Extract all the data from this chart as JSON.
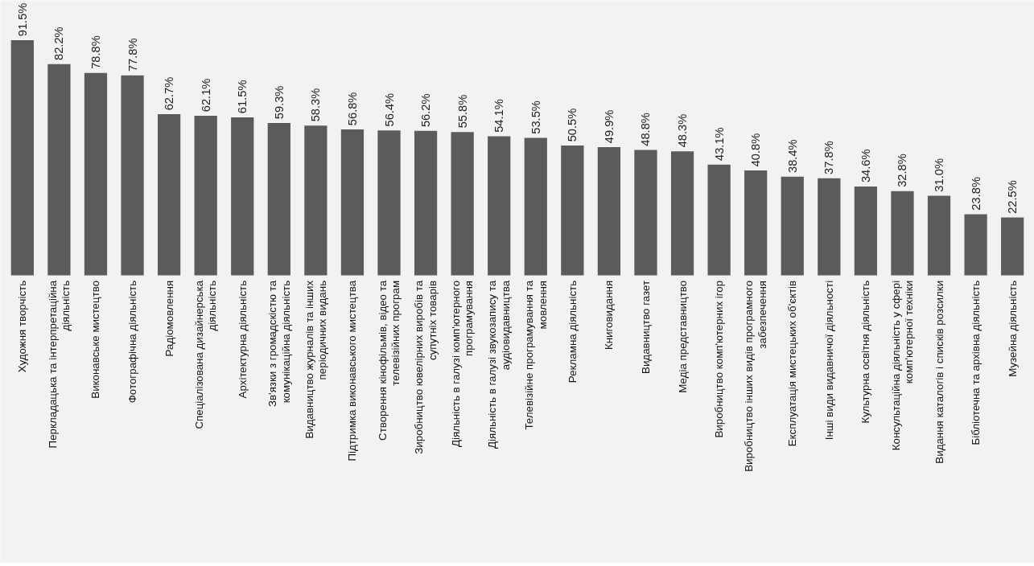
{
  "chart_data": {
    "type": "bar",
    "color": "#5b5b5b",
    "categories": [
      "Художня творчість",
      "Перкладацька та інтерпретаційна діяльність",
      "Виконавське мистецтво",
      "Фотографічна діяльність",
      "Радіомовлення",
      "Спеціалізована дизайнерська діяльність",
      "Архітектурна діяльність",
      "Зв'язки з громадскістю та комунікаційна діяльність",
      "Видавництво журналів та інших періодичних видань",
      "Підтримка виконавського мистецтва",
      "Створення кінофільмів, відео та телевізійних програм",
      "Зиробництво ювелірних виробів та супутніх товарів",
      "Діяльність в галузі комп'ютерного програмування",
      "Діяльність в галузі звукозапису та аудіовидавництва",
      "Телевізійне програмування та мовлення",
      "Рекламна діяльність",
      "Книговидання",
      "Видавництво газет",
      "Медіа представництво",
      "Виробництво комп'ютерних ігор",
      "Виробництво інших видів програмного забезпечення",
      "Експлуатація мистецьких об'єктів",
      "Інші види видавничої діяльності",
      "Культурна освітня діяльність",
      "Консультаційна діяльність у сфері комп'ютерної техніки",
      "Видання каталогів і списків розсилки",
      "Бібліотечна та архівна діяльність",
      "Музейна діяльність"
    ],
    "values": [
      91.5,
      82.2,
      78.8,
      77.8,
      62.7,
      62.1,
      61.5,
      59.3,
      58.3,
      56.8,
      56.4,
      56.2,
      55.8,
      54.1,
      53.5,
      50.5,
      49.9,
      48.8,
      48.3,
      43.1,
      40.8,
      38.4,
      37.8,
      34.6,
      32.8,
      31.0,
      23.8,
      22.5
    ],
    "value_labels": [
      "91.5%",
      "82.2%",
      "78.8%",
      "77.8%",
      "62.7%",
      "62.1%",
      "61.5%",
      "59.3%",
      "58.3%",
      "56.8%",
      "56.4%",
      "56.2%",
      "55.8%",
      "54.1%",
      "53.5%",
      "50.5%",
      "49.9%",
      "48.8%",
      "48.3%",
      "43.1%",
      "40.8%",
      "38.4%",
      "37.8%",
      "34.6%",
      "32.8%",
      "31.0%",
      "23.8%",
      "22.5%"
    ],
    "grid": false
  }
}
